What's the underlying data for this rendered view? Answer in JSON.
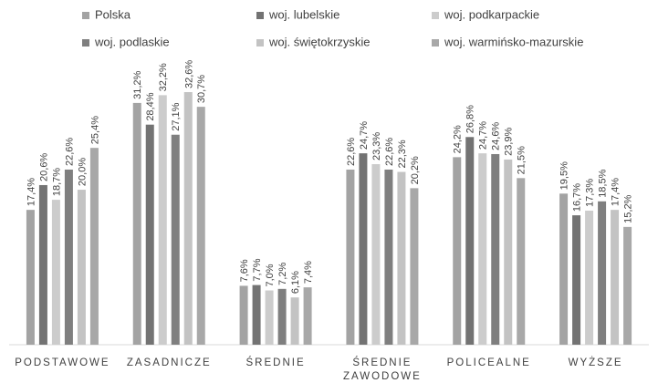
{
  "chart_data": {
    "type": "bar",
    "categories": [
      "PODSTAWOWE",
      "ZASADNICZE",
      "ŚREDNIE",
      "ŚREDNIE ZAWODOWE",
      "POLICEALNE",
      "WYŻSZE"
    ],
    "series": [
      {
        "name": "Polska",
        "color": "#a3a3a3",
        "values": [
          17.4,
          31.2,
          7.6,
          22.6,
          24.2,
          19.5
        ],
        "value_labels": [
          "17,4%",
          "31,2%",
          "7,6%",
          "22,6%",
          "24,2%",
          "19,5%"
        ]
      },
      {
        "name": "woj. lubelskie",
        "color": "#737373",
        "values": [
          20.6,
          28.4,
          7.7,
          24.7,
          26.8,
          16.7
        ],
        "value_labels": [
          "20,6%",
          "28,4%",
          "7,7%",
          "24,7%",
          "26,8%",
          "16,7%"
        ]
      },
      {
        "name": "woj. podkarpackie",
        "color": "#cccccc",
        "values": [
          18.7,
          32.2,
          7.0,
          23.3,
          24.7,
          17.3
        ],
        "value_labels": [
          "18,7%",
          "32,2%",
          "7,0%",
          "23,3%",
          "24,7%",
          "17,3%"
        ]
      },
      {
        "name": "woj. podlaskie",
        "color": "#7f7f7f",
        "values": [
          22.6,
          27.1,
          7.2,
          22.6,
          24.6,
          18.5
        ],
        "value_labels": [
          "22,6%",
          "27,1%",
          "7,2%",
          "22,6%",
          "24,6%",
          "18,5%"
        ]
      },
      {
        "name": "woj. świętokrzyskie",
        "color": "#c3c3c3",
        "values": [
          20.0,
          32.6,
          6.1,
          22.3,
          23.9,
          17.4
        ],
        "value_labels": [
          "20,0%",
          "32,6%",
          "6,1%",
          "22,3%",
          "23,9%",
          "17,4%"
        ]
      },
      {
        "name": "woj. warmińsko-mazurskie",
        "color": "#a8a8a8",
        "values": [
          25.4,
          30.7,
          7.4,
          20.2,
          21.5,
          15.2
        ],
        "value_labels": [
          "25,4%",
          "30,7%",
          "7,4%",
          "20,2%",
          "21,5%",
          "15,2%"
        ]
      }
    ]
  }
}
